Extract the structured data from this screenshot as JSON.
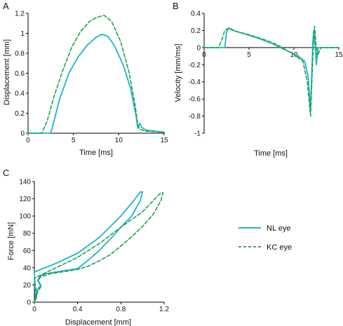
{
  "colors": {
    "nl": "#1fb3c8",
    "kc": "#1aa34a",
    "axis": "#000000"
  },
  "panels": [
    {
      "key": "A",
      "label": "A",
      "xlabel": "Time [ms]",
      "ylabel": "Displacement [mm]"
    },
    {
      "key": "B",
      "label": "B",
      "xlabel": "Time [ms]",
      "ylabel": "Velocity [mm/ms]"
    },
    {
      "key": "C",
      "label": "C",
      "xlabel": "Displacement [mm]",
      "ylabel": "Force [mN]"
    }
  ],
  "legend": {
    "nl": "NL eye",
    "kc": "KC eye"
  },
  "chart_data": [
    {
      "panel": "A",
      "type": "line",
      "xlabel": "Time [ms]",
      "ylabel": "Displacement [mm]",
      "xlim": [
        0,
        15
      ],
      "ylim": [
        0,
        1.2
      ],
      "xticks": [
        0,
        5,
        10,
        15
      ],
      "yticks": [
        0,
        0.2,
        0.4,
        0.6,
        0.8,
        1,
        1.2
      ],
      "xtick_labels": [
        "0",
        "5",
        "10",
        "15"
      ],
      "ytick_labels": [
        "0",
        "0.2",
        "0.4",
        "0.6",
        "0.8",
        "1",
        "1.2"
      ],
      "grid": false,
      "series": [
        {
          "key": "nl",
          "name": "NL eye",
          "points": [
            [
              0,
              0
            ],
            [
              2.5,
              0
            ],
            [
              2.8,
              0.1
            ],
            [
              3.5,
              0.35
            ],
            [
              4.5,
              0.6
            ],
            [
              5.5,
              0.76
            ],
            [
              6.5,
              0.88
            ],
            [
              7.5,
              0.96
            ],
            [
              8.1,
              0.99
            ],
            [
              8.8,
              0.97
            ],
            [
              9.5,
              0.88
            ],
            [
              10.5,
              0.68
            ],
            [
              11.3,
              0.45
            ],
            [
              11.9,
              0.18
            ],
            [
              12.1,
              0.05
            ],
            [
              12.3,
              0.1
            ],
            [
              12.5,
              0.06
            ],
            [
              13,
              0.03
            ],
            [
              14,
              0.02
            ],
            [
              15,
              0.01
            ]
          ]
        },
        {
          "key": "kc",
          "name": "KC eye",
          "points": [
            [
              0,
              0
            ],
            [
              1.5,
              0
            ],
            [
              2.1,
              0.12
            ],
            [
              2.8,
              0.35
            ],
            [
              3.8,
              0.62
            ],
            [
              4.8,
              0.86
            ],
            [
              5.8,
              1.02
            ],
            [
              6.8,
              1.12
            ],
            [
              7.6,
              1.16
            ],
            [
              8.4,
              1.18
            ],
            [
              9.2,
              1.12
            ],
            [
              10.2,
              0.92
            ],
            [
              11.1,
              0.62
            ],
            [
              11.8,
              0.28
            ],
            [
              12.1,
              0.08
            ],
            [
              12.3,
              0.04
            ],
            [
              13,
              0.02
            ],
            [
              15,
              0.01
            ]
          ]
        }
      ]
    },
    {
      "panel": "B",
      "type": "line",
      "xlabel": "Time [ms]",
      "ylabel": "Velocity [mm/ms]",
      "xlim": [
        0,
        15
      ],
      "ylim": [
        -1,
        0.4
      ],
      "xticks": [
        0,
        5,
        10,
        15
      ],
      "yticks": [
        -1,
        -0.8,
        -0.6,
        -0.4,
        -0.2,
        0,
        0.2,
        0.4
      ],
      "xtick_labels": [
        "0",
        "5",
        "10",
        "15"
      ],
      "ytick_labels": [
        "-1",
        "-0.8",
        "-0.6",
        "-0.4",
        "-0.2",
        "0",
        "0.2",
        "0.4"
      ],
      "grid": false,
      "series": [
        {
          "key": "nl",
          "name": "NL eye",
          "points": [
            [
              0,
              0
            ],
            [
              2.3,
              0
            ],
            [
              2.5,
              0.18
            ],
            [
              2.7,
              0.23
            ],
            [
              3.2,
              0.2
            ],
            [
              4.5,
              0.16
            ],
            [
              6,
              0.11
            ],
            [
              7.5,
              0.05
            ],
            [
              8.5,
              0
            ],
            [
              9.5,
              -0.05
            ],
            [
              10.5,
              -0.1
            ],
            [
              11.2,
              -0.16
            ],
            [
              11.6,
              -0.35
            ],
            [
              11.85,
              -0.72
            ],
            [
              12.0,
              -0.3
            ],
            [
              12.1,
              0.05
            ],
            [
              12.2,
              0.2
            ],
            [
              12.35,
              0.05
            ],
            [
              12.5,
              -0.2
            ],
            [
              12.7,
              0
            ],
            [
              13,
              0
            ],
            [
              15,
              0
            ]
          ]
        },
        {
          "key": "kc",
          "name": "KC eye",
          "points": [
            [
              0,
              0
            ],
            [
              1.6,
              0
            ],
            [
              2.0,
              0.1
            ],
            [
              2.3,
              0.2
            ],
            [
              2.8,
              0.23
            ],
            [
              3.5,
              0.19
            ],
            [
              5,
              0.15
            ],
            [
              6.5,
              0.1
            ],
            [
              8,
              0.04
            ],
            [
              9,
              -0.02
            ],
            [
              10,
              -0.08
            ],
            [
              11,
              -0.16
            ],
            [
              11.5,
              -0.4
            ],
            [
              11.85,
              -0.8
            ],
            [
              12.0,
              -0.4
            ],
            [
              12.15,
              0
            ],
            [
              12.3,
              0.25
            ],
            [
              12.45,
              0.05
            ],
            [
              12.6,
              -0.1
            ],
            [
              13,
              0
            ],
            [
              15,
              0
            ]
          ]
        }
      ]
    },
    {
      "panel": "C",
      "type": "line",
      "xlabel": "Displacement [mm]",
      "ylabel": "Force [mN]",
      "xlim": [
        0,
        1.2
      ],
      "ylim": [
        0,
        140
      ],
      "xticks": [
        0,
        0.4,
        0.8,
        1.2
      ],
      "yticks": [
        0,
        20,
        40,
        60,
        80,
        100,
        120,
        140
      ],
      "xtick_labels": [
        "0",
        "0.4",
        "0.8",
        "1.2"
      ],
      "ytick_labels": [
        "0",
        "20",
        "40",
        "60",
        "80",
        "100",
        "120",
        "140"
      ],
      "grid": false,
      "series": [
        {
          "key": "nl",
          "name": "NL eye",
          "points": [
            [
              0,
              0
            ],
            [
              0.01,
              5
            ],
            [
              0.0,
              35
            ],
            [
              0.2,
              45
            ],
            [
              0.4,
              57
            ],
            [
              0.6,
              75
            ],
            [
              0.8,
              100
            ],
            [
              0.92,
              118
            ],
            [
              0.98,
              128
            ],
            [
              1.0,
              128
            ],
            [
              0.98,
              118
            ],
            [
              0.9,
              100
            ],
            [
              0.8,
              87
            ],
            [
              0.7,
              73
            ],
            [
              0.6,
              60
            ],
            [
              0.5,
              49
            ],
            [
              0.4,
              39
            ],
            [
              0.3,
              37
            ],
            [
              0.2,
              35
            ],
            [
              0.1,
              33
            ],
            [
              0.05,
              30
            ],
            [
              0.03,
              25
            ],
            [
              0.06,
              20
            ],
            [
              0.03,
              15
            ],
            [
              0.02,
              8
            ],
            [
              0.01,
              3
            ],
            [
              0,
              0
            ]
          ]
        },
        {
          "key": "kc",
          "name": "KC eye",
          "points": [
            [
              0,
              0
            ],
            [
              0.02,
              10
            ],
            [
              0.0,
              28
            ],
            [
              0.2,
              40
            ],
            [
              0.4,
              52
            ],
            [
              0.6,
              68
            ],
            [
              0.8,
              87
            ],
            [
              1.0,
              105
            ],
            [
              1.1,
              118
            ],
            [
              1.17,
              127
            ],
            [
              1.19,
              127
            ],
            [
              1.17,
              118
            ],
            [
              1.1,
              102
            ],
            [
              1.0,
              88
            ],
            [
              0.9,
              76
            ],
            [
              0.8,
              65
            ],
            [
              0.7,
              55
            ],
            [
              0.6,
              48
            ],
            [
              0.5,
              42
            ],
            [
              0.4,
              38
            ],
            [
              0.3,
              36
            ],
            [
              0.15,
              33
            ],
            [
              0.05,
              29
            ],
            [
              0.04,
              24
            ],
            [
              0.06,
              18
            ],
            [
              0.03,
              12
            ],
            [
              0.02,
              6
            ],
            [
              0.01,
              2
            ],
            [
              0,
              0
            ]
          ]
        }
      ]
    }
  ]
}
